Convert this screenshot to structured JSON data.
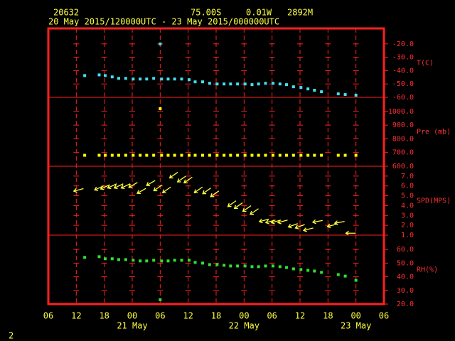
{
  "header": {
    "station": "20632",
    "lat": "75.00S",
    "lon": "0.01W",
    "elev": "2892M",
    "period": "20 May 2015/120000UTC - 23 May 2015/000000UTC",
    "page": "2"
  },
  "axis": {
    "xlim": [
      6,
      78
    ],
    "xticks": [
      {
        "value": 6,
        "label": "06"
      },
      {
        "value": 12,
        "label": "12"
      },
      {
        "value": 18,
        "label": "18"
      },
      {
        "value": 24,
        "label": "00"
      },
      {
        "value": 30,
        "label": "06"
      },
      {
        "value": 36,
        "label": "12"
      },
      {
        "value": 42,
        "label": "18"
      },
      {
        "value": 48,
        "label": "00"
      },
      {
        "value": 54,
        "label": "06"
      },
      {
        "value": 60,
        "label": "12"
      },
      {
        "value": 66,
        "label": "18"
      },
      {
        "value": 72,
        "label": "00"
      },
      {
        "value": 78,
        "label": "06"
      }
    ],
    "date_labels": [
      {
        "value": 24,
        "label": "21 May"
      },
      {
        "value": 48,
        "label": "22 May"
      },
      {
        "value": 72,
        "label": "23 May"
      }
    ],
    "grid": true,
    "frame_color": "#ff2020"
  },
  "chart_data": [
    {
      "type": "scatter",
      "ylabel": "T(C)",
      "color": "#40e0f0",
      "ylim": [
        -60,
        -8.4
      ],
      "yticks": [
        {
          "value": -60,
          "label": "-60.0"
        },
        {
          "value": -50,
          "label": "-50.0"
        },
        {
          "value": -40,
          "label": "-40.0"
        },
        {
          "value": -30,
          "label": "-30.0"
        },
        {
          "value": -20,
          "label": "-20.0"
        }
      ],
      "x": [
        13.8,
        16.9,
        18.2,
        19.7,
        21.1,
        22.6,
        24.2,
        25.7,
        27.1,
        28.6,
        30.0,
        30.3,
        31.7,
        33.1,
        34.6,
        36.2,
        37.5,
        39.1,
        40.6,
        42.2,
        43.7,
        45.1,
        46.6,
        48.2,
        49.7,
        51.1,
        52.6,
        54.2,
        55.7,
        57.1,
        58.6,
        60.2,
        61.7,
        63.1,
        64.6,
        68.2,
        69.7,
        72.0
      ],
      "values": [
        -43.7,
        -43.2,
        -43.7,
        -44.7,
        -45.8,
        -45.8,
        -46.3,
        -46.3,
        -46.3,
        -45.8,
        -20,
        -46.3,
        -46.3,
        -46.3,
        -46.3,
        -46.8,
        -48.4,
        -48.4,
        -49.5,
        -50,
        -50,
        -50,
        -50,
        -50,
        -50.5,
        -50,
        -49.5,
        -49.5,
        -50,
        -50.5,
        -52.1,
        -52.6,
        -53.7,
        -54.7,
        -55.8,
        -57.4,
        -57.9,
        -58.4
      ]
    },
    {
      "type": "scatter",
      "ylabel": "Pre (mb)",
      "color": "#ffff00",
      "ylim": [
        600,
        1103
      ],
      "yticks": [
        {
          "value": 600,
          "label": "600.0"
        },
        {
          "value": 700,
          "label": "700.0"
        },
        {
          "value": 800,
          "label": "800.0"
        },
        {
          "value": 900,
          "label": "900.0"
        },
        {
          "value": 1000,
          "label": "1000.0"
        }
      ],
      "x": [
        13.8,
        16.9,
        18.2,
        19.7,
        21.1,
        22.6,
        24.2,
        25.7,
        27.1,
        28.6,
        30.0,
        30.3,
        31.7,
        33.1,
        34.6,
        36.2,
        37.5,
        39.1,
        40.6,
        42.2,
        43.7,
        45.1,
        46.6,
        48.2,
        49.7,
        51.1,
        52.6,
        54.2,
        55.7,
        57.1,
        58.6,
        60.2,
        61.7,
        63.1,
        64.6,
        68.2,
        69.7,
        72.0
      ],
      "values": [
        680,
        680,
        680,
        680,
        680,
        680,
        680,
        680,
        680,
        680,
        1020,
        680,
        680,
        680,
        680,
        680,
        680,
        680,
        680,
        680,
        680,
        680,
        680,
        680,
        680,
        680,
        680,
        680,
        680,
        680,
        680,
        680,
        680,
        680,
        680,
        680,
        680,
        680
      ]
    },
    {
      "type": "vector",
      "ylabel": "SPD(MPS)",
      "color": "#ffff40",
      "ylim": [
        1,
        8
      ],
      "yticks": [
        {
          "value": 1,
          "label": "1.0"
        },
        {
          "value": 2,
          "label": "2.0"
        },
        {
          "value": 3,
          "label": "3.0"
        },
        {
          "value": 4,
          "label": "4.0"
        },
        {
          "value": 5,
          "label": "5.0"
        },
        {
          "value": 6,
          "label": "6.0"
        },
        {
          "value": 7,
          "label": "7.0"
        }
      ],
      "x": [
        12.5,
        16.9,
        18.2,
        19.7,
        21.1,
        22.6,
        24.2,
        26.0,
        28.0,
        29.5,
        31.4,
        32.9,
        34.6,
        36.0,
        38.2,
        40.0,
        41.7,
        45.4,
        46.8,
        48.6,
        50.2,
        52.3,
        53.7,
        54.9,
        56.3,
        58.5,
        60.0,
        61.8,
        63.8,
        66.9,
        68.5,
        70.9
      ],
      "values": [
        5.6,
        5.8,
        5.9,
        6.0,
        6.0,
        6.0,
        6.1,
        5.5,
        6.3,
        5.8,
        5.6,
        7.1,
        6.7,
        6.6,
        5.6,
        5.5,
        5.2,
        4.2,
        4.0,
        3.7,
        3.4,
        2.5,
        2.4,
        2.4,
        2.4,
        2.0,
        1.9,
        1.6,
        2.4,
        2.0,
        2.3,
        1.2
      ],
      "directions": [
        75,
        65,
        65,
        65,
        65,
        65,
        60,
        60,
        60,
        55,
        55,
        55,
        55,
        55,
        55,
        55,
        55,
        55,
        55,
        55,
        55,
        75,
        75,
        75,
        75,
        70,
        70,
        75,
        80,
        75,
        80,
        90
      ]
    },
    {
      "type": "scatter",
      "ylabel": "RH(%)",
      "color": "#30e030",
      "ylim": [
        20,
        70.5
      ],
      "yticks": [
        {
          "value": 20,
          "label": "20.0"
        },
        {
          "value": 30,
          "label": "30.0"
        },
        {
          "value": 40,
          "label": "40.0"
        },
        {
          "value": 50,
          "label": "50.0"
        },
        {
          "value": 60,
          "label": "60.0"
        }
      ],
      "x": [
        13.8,
        16.9,
        18.2,
        19.7,
        21.1,
        22.6,
        24.2,
        25.7,
        27.1,
        28.6,
        30.0,
        30.3,
        31.7,
        33.1,
        34.6,
        36.2,
        37.5,
        39.1,
        40.6,
        42.2,
        43.7,
        45.1,
        46.6,
        48.2,
        49.7,
        51.1,
        52.6,
        54.2,
        55.7,
        57.1,
        58.6,
        60.2,
        61.7,
        63.1,
        64.6,
        68.2,
        69.7,
        72.0
      ],
      "values": [
        54.2,
        54.7,
        53.2,
        53.2,
        52.6,
        52.6,
        52.1,
        51.6,
        51.6,
        52.1,
        23.2,
        51.6,
        51.6,
        52.1,
        52.1,
        52.1,
        50.5,
        50,
        48.9,
        48.9,
        48.4,
        47.9,
        47.9,
        47.9,
        47.4,
        47.4,
        47.9,
        47.9,
        47.4,
        46.8,
        45.8,
        45.3,
        44.7,
        44.2,
        43.2,
        41.6,
        40.5,
        37.4
      ]
    }
  ]
}
